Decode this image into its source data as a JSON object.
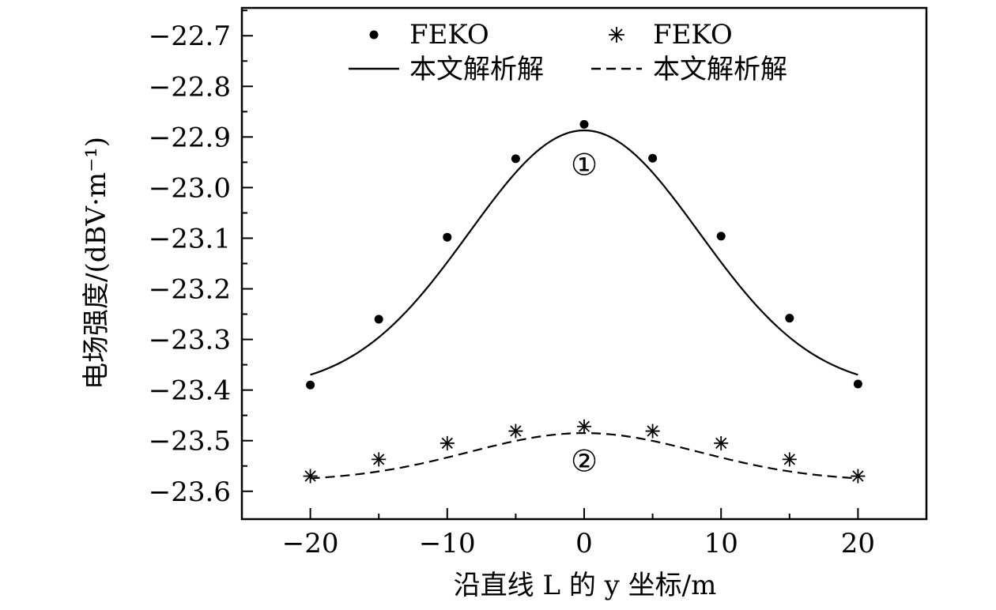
{
  "chart_data": {
    "type": "line",
    "xlabel": "沿直线 L 的 y 坐标/m",
    "ylabel": "电场强度/(dBV·m⁻¹)",
    "xlim": [
      -25,
      25
    ],
    "ylim": [
      -23.655,
      -22.645
    ],
    "x_ticks": [
      -20,
      -10,
      0,
      10,
      20
    ],
    "x_tick_labels": [
      "−20",
      "−10",
      "0",
      "10",
      "20"
    ],
    "y_ticks": [
      -22.7,
      -22.8,
      -22.9,
      -23.0,
      -23.1,
      -23.2,
      -23.3,
      -23.4,
      -23.5,
      -23.6
    ],
    "y_tick_labels": [
      "−22.7",
      "−22.8",
      "−22.9",
      "−23.0",
      "−23.1",
      "−23.2",
      "−23.3",
      "−23.4",
      "−23.5",
      "−23.6"
    ],
    "grid": false,
    "legend_position": "top",
    "series": [
      {
        "name": "FEKO",
        "kind": "scatter-dot",
        "x": [
          -20,
          -15,
          -10,
          -5,
          0,
          5,
          10,
          15,
          20
        ],
        "values": [
          -23.39,
          -23.26,
          -23.098,
          -22.943,
          -22.875,
          -22.942,
          -23.096,
          -23.258,
          -23.388
        ]
      },
      {
        "name": "FEKO",
        "kind": "scatter-star",
        "x": [
          -20,
          -15,
          -10,
          -5,
          0,
          5,
          10,
          15,
          20
        ],
        "values": [
          -23.57,
          -23.537,
          -23.505,
          -23.481,
          -23.472,
          -23.481,
          -23.505,
          -23.537,
          -23.57
        ]
      },
      {
        "name": "本文解析解",
        "kind": "line-solid",
        "curve": {
          "base": -23.4,
          "peak": -22.887,
          "sigma": 8.4,
          "x_from": -20,
          "x_to": 20
        }
      },
      {
        "name": "本文解析解",
        "kind": "line-dashed",
        "curve": {
          "base": -23.58,
          "peak": -23.485,
          "sigma": 8.4,
          "x_from": -20,
          "x_to": 20
        }
      }
    ],
    "annotations": [
      {
        "text": "①",
        "x": 0,
        "y": -22.955
      },
      {
        "text": "②",
        "x": 0,
        "y": -23.54
      }
    ]
  }
}
